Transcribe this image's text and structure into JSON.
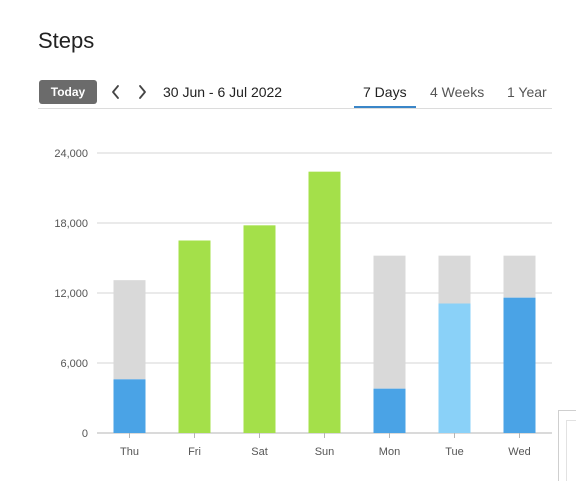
{
  "page": {
    "title": "Steps"
  },
  "toolbar": {
    "today_label": "Today",
    "date_range": "30 Jun - 6 Jul 2022",
    "tabs": [
      {
        "label": "7 Days",
        "active": true
      },
      {
        "label": "4 Weeks",
        "active": false
      },
      {
        "label": "1 Year",
        "active": false
      }
    ]
  },
  "icons": {
    "prev": "chevron-left-icon",
    "next": "chevron-right-icon"
  },
  "chart_data": {
    "type": "bar",
    "title": "",
    "xlabel": "",
    "ylabel": "",
    "ylim": [
      0,
      24000
    ],
    "yticks": [
      0,
      6000,
      12000,
      18000,
      24000
    ],
    "ytick_labels": [
      "0",
      "6,000",
      "12,000",
      "18,000",
      "24,000"
    ],
    "grid": true,
    "categories": [
      "Thu",
      "Fri",
      "Sat",
      "Sun",
      "Mon",
      "Tue",
      "Wed"
    ],
    "values": [
      4600,
      16500,
      17800,
      22400,
      3800,
      11100,
      11600
    ],
    "goal": [
      13100,
      16500,
      17800,
      22400,
      15200,
      15200,
      15200
    ],
    "bar_colors": [
      "#4aa3e6",
      "#a4e04a",
      "#a4e04a",
      "#a4e04a",
      "#4aa3e6",
      "#8ad1f8",
      "#4aa3e6"
    ],
    "goal_color": "#d9d9d9",
    "grid_color": "#d4d4d4",
    "axis_color": "#b5b5b5"
  }
}
